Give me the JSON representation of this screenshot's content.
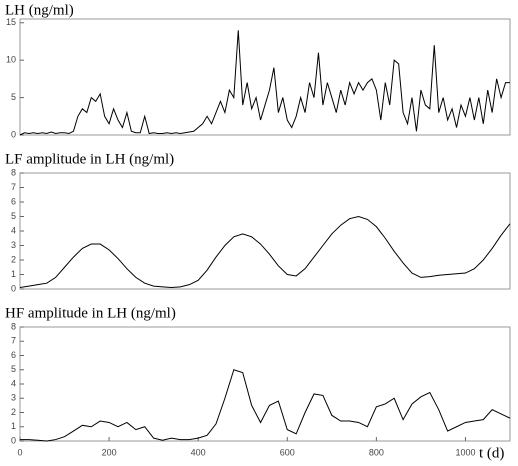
{
  "chart_data": [
    {
      "type": "line",
      "title": "LH (ng/ml)",
      "xlim": [
        0,
        1100
      ],
      "ylim": [
        0,
        15.5
      ],
      "yticks": [
        0,
        5,
        10,
        15
      ],
      "color": "#000000",
      "x": [
        0,
        10,
        20,
        30,
        40,
        50,
        60,
        70,
        80,
        90,
        100,
        110,
        120,
        130,
        140,
        150,
        160,
        170,
        180,
        190,
        200,
        210,
        220,
        230,
        240,
        250,
        260,
        270,
        280,
        290,
        300,
        310,
        320,
        330,
        340,
        350,
        360,
        370,
        380,
        390,
        400,
        410,
        420,
        430,
        440,
        450,
        460,
        470,
        480,
        490,
        500,
        510,
        520,
        530,
        540,
        550,
        560,
        570,
        580,
        590,
        600,
        610,
        620,
        630,
        640,
        650,
        660,
        670,
        680,
        690,
        700,
        710,
        720,
        730,
        740,
        750,
        760,
        770,
        780,
        790,
        800,
        810,
        820,
        830,
        840,
        850,
        860,
        870,
        880,
        890,
        900,
        910,
        920,
        930,
        940,
        950,
        960,
        970,
        980,
        990,
        1000,
        1010,
        1020,
        1030,
        1040,
        1050,
        1060,
        1070,
        1080,
        1090,
        1100
      ],
      "values": [
        0,
        0.3,
        0.2,
        0.3,
        0.2,
        0.3,
        0.2,
        0.4,
        0.2,
        0.3,
        0.3,
        0.2,
        0.5,
        2.5,
        3.5,
        3,
        5,
        4.5,
        5.5,
        2.5,
        1.5,
        3.5,
        2,
        1,
        3,
        0.5,
        0.3,
        0.3,
        2.5,
        0.2,
        0.3,
        0.2,
        0.2,
        0.3,
        0.2,
        0.3,
        0.2,
        0.3,
        0.4,
        0.5,
        1,
        1.5,
        2.5,
        1.5,
        3,
        4.5,
        3,
        6,
        5,
        14,
        4,
        7,
        3.5,
        5,
        2,
        4,
        6,
        9,
        3,
        5,
        2,
        1,
        2.5,
        5,
        3,
        7,
        5,
        11,
        4,
        7,
        5,
        3,
        6,
        4,
        7,
        5.5,
        7,
        6,
        7,
        7.5,
        6,
        2,
        7,
        4,
        10,
        9.5,
        3,
        1.5,
        5,
        0.5,
        6,
        4,
        3.5,
        12,
        3,
        5,
        2,
        3.5,
        1,
        4,
        2.5,
        5,
        2,
        5,
        1.5,
        6,
        3,
        7.5,
        5,
        7,
        7
      ]
    },
    {
      "type": "line",
      "title": "LF amplitude in LH (ng/ml)",
      "xlim": [
        0,
        1100
      ],
      "ylim": [
        0,
        8
      ],
      "yticks": [
        0,
        1,
        2,
        3,
        4,
        5,
        6,
        7,
        8
      ],
      "color": "#000000",
      "x": [
        0,
        20,
        40,
        60,
        80,
        100,
        120,
        140,
        160,
        180,
        200,
        220,
        240,
        260,
        280,
        300,
        320,
        340,
        360,
        380,
        400,
        420,
        440,
        460,
        480,
        500,
        520,
        540,
        560,
        580,
        600,
        620,
        640,
        660,
        680,
        700,
        720,
        740,
        760,
        780,
        800,
        820,
        840,
        860,
        880,
        900,
        920,
        940,
        960,
        980,
        1000,
        1020,
        1040,
        1060,
        1080,
        1100
      ],
      "values": [
        0.1,
        0.2,
        0.3,
        0.4,
        0.8,
        1.5,
        2.2,
        2.8,
        3.1,
        3.1,
        2.7,
        2.1,
        1.4,
        0.8,
        0.4,
        0.2,
        0.15,
        0.1,
        0.15,
        0.3,
        0.6,
        1.3,
        2.2,
        3.0,
        3.6,
        3.8,
        3.6,
        3.1,
        2.4,
        1.6,
        1.0,
        0.9,
        1.4,
        2.2,
        3.0,
        3.8,
        4.4,
        4.85,
        5.0,
        4.8,
        4.3,
        3.5,
        2.6,
        1.8,
        1.1,
        0.8,
        0.85,
        0.95,
        1.0,
        1.05,
        1.1,
        1.4,
        2.0,
        2.8,
        3.7,
        4.5
      ]
    },
    {
      "type": "line",
      "title": "HF amplitude in LH (ng/ml)",
      "xlabel": "t (d)",
      "xlim": [
        0,
        1100
      ],
      "xticks": [
        0,
        200,
        400,
        600,
        800,
        1000
      ],
      "ylim": [
        0,
        8
      ],
      "yticks": [
        0,
        1,
        2,
        3,
        4,
        5,
        6,
        7,
        8
      ],
      "color": "#000000",
      "x": [
        0,
        20,
        40,
        60,
        80,
        100,
        120,
        140,
        160,
        180,
        200,
        220,
        240,
        260,
        280,
        300,
        320,
        340,
        360,
        380,
        400,
        420,
        440,
        460,
        480,
        500,
        520,
        540,
        560,
        580,
        600,
        620,
        640,
        660,
        680,
        700,
        720,
        740,
        760,
        780,
        800,
        820,
        840,
        860,
        880,
        900,
        920,
        940,
        960,
        980,
        1000,
        1020,
        1040,
        1060,
        1080,
        1100
      ],
      "values": [
        0.1,
        0.1,
        0.05,
        0,
        0.1,
        0.3,
        0.7,
        1.1,
        1.0,
        1.4,
        1.3,
        1.0,
        1.3,
        0.8,
        1.0,
        0.2,
        0.05,
        0.2,
        0.1,
        0.1,
        0.2,
        0.4,
        1.2,
        3.0,
        5.0,
        4.8,
        2.5,
        1.3,
        2.5,
        2.8,
        0.8,
        0.5,
        2.0,
        3.3,
        3.2,
        1.8,
        1.4,
        1.4,
        1.3,
        1.0,
        2.4,
        2.6,
        3.0,
        1.5,
        2.6,
        3.1,
        3.4,
        2.2,
        0.7,
        1.0,
        1.3,
        1.4,
        1.5,
        2.2,
        1.9,
        1.6
      ]
    }
  ]
}
